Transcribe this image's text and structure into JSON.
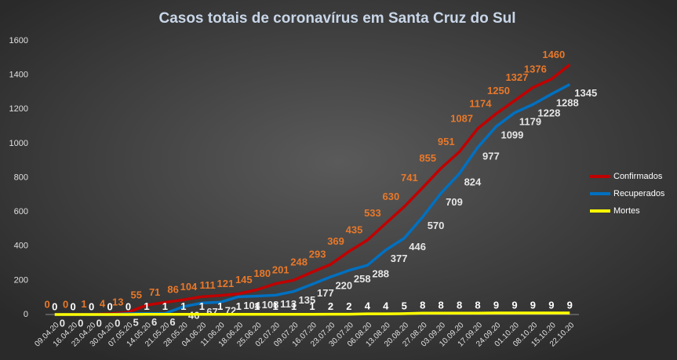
{
  "chart_data": {
    "type": "line",
    "title": "Casos totais de coronavírus  em Santa Cruz do Sul",
    "categories": [
      "09.04.20",
      "16.04.20",
      "23.04.20",
      "30.04.20",
      "07.05.20",
      "14.05.20",
      "21.05.20",
      "28.05.20",
      "04.06.20",
      "11.06.20",
      "18.06.20",
      "25.06.20",
      "02.07.20",
      "09.07.20",
      "16.07.20",
      "23.07.20",
      "30.07.20",
      "06.08.20",
      "13.08.20",
      "20.08.20",
      "27.08.20",
      "03.09.20",
      "10.09.20",
      "17.09.20",
      "24.09.20",
      "01.10.20",
      "08.10.20",
      "15.10.20",
      "22.10.20"
    ],
    "series": [
      {
        "name": "Confirmados",
        "color": "#c00000",
        "label_color": "#e8782a",
        "values": [
          0,
          0,
          1,
          4,
          13,
          55,
          71,
          86,
          104,
          111,
          121,
          145,
          180,
          201,
          248,
          293,
          369,
          435,
          533,
          630,
          741,
          855,
          951,
          1087,
          1174,
          1250,
          1327,
          1376,
          1460
        ]
      },
      {
        "name": "Recuperados",
        "color": "#0070c0",
        "label_color": "#e6e6e6",
        "values": [
          0,
          0,
          0,
          0,
          5,
          6,
          6,
          46,
          67,
          72,
          104,
          108,
          113,
          135,
          177,
          220,
          258,
          288,
          377,
          446,
          570,
          709,
          824,
          977,
          1099,
          1179,
          1228,
          1288,
          1345
        ]
      },
      {
        "name": "Mortes",
        "color": "#ffff00",
        "label_color": "#ffffff",
        "values": [
          0,
          0,
          0,
          0,
          0,
          1,
          1,
          1,
          1,
          1,
          1,
          1,
          1,
          1,
          1,
          2,
          2,
          4,
          4,
          5,
          8,
          8,
          8,
          8,
          9,
          9,
          9,
          9,
          9
        ]
      }
    ],
    "ylim": [
      0,
      1600
    ],
    "yticks": [
      0,
      200,
      400,
      600,
      800,
      1000,
      1200,
      1400,
      1600
    ],
    "grid": false,
    "legend": "right"
  }
}
